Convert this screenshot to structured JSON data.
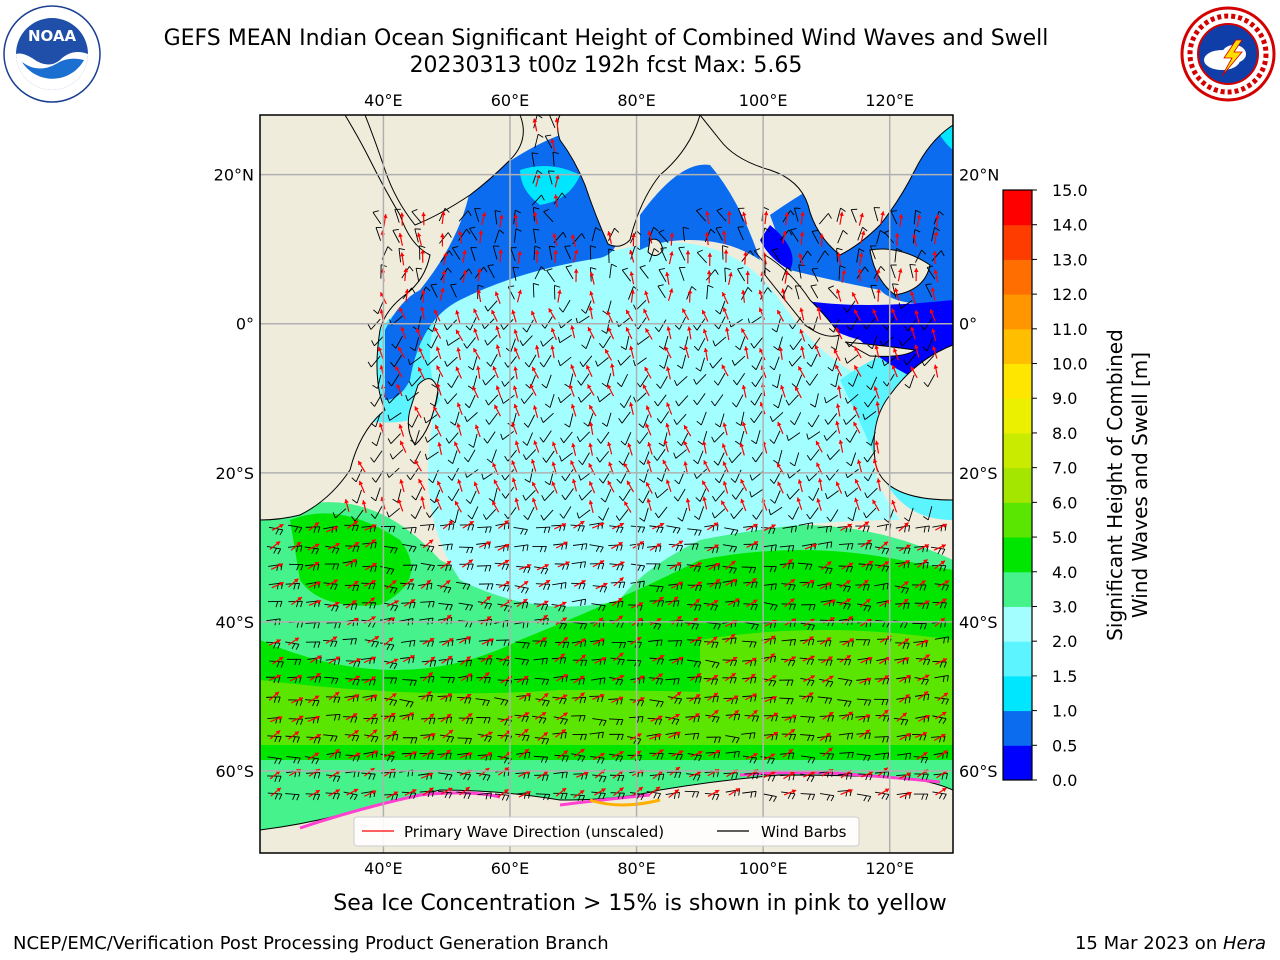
{
  "title": {
    "line1": "GEFS MEAN Indian Ocean Significant Height of Combined Wind Waves and Swell",
    "line2": "20230313 t00z 192h fcst   Max: 5.65"
  },
  "logos": {
    "left": {
      "text": "NOAA",
      "ring_text": "NATIONAL OCEANIC AND ATMOSPHERIC ADMINISTRATION · U.S. DEPARTMENT OF COMMERCE"
    },
    "right": {
      "ring_text": "NATIONAL WEATHER SERVICE"
    }
  },
  "map": {
    "lon_ticks": [
      "40°E",
      "60°E",
      "80°E",
      "100°E",
      "120°E"
    ],
    "lat_ticks": [
      "20°N",
      "0°",
      "20°S",
      "40°S",
      "60°S"
    ],
    "lon_values": [
      40,
      60,
      80,
      100,
      120
    ],
    "lat_values": [
      20,
      0,
      -20,
      -40,
      -60
    ],
    "lon_range": [
      20.5,
      130
    ],
    "lat_range": [
      28,
      -71
    ],
    "land_color": "#efecdc",
    "grid": true
  },
  "legend": {
    "wave_label": "Primary Wave Direction (unscaled)",
    "barb_label": "Wind Barbs",
    "wave_color": "#ff0000",
    "barb_color": "#000000"
  },
  "colorbar": {
    "label_line1": "Significant Height of Combined",
    "label_line2": "Wind Waves and Swell [m]",
    "ticks": [
      "0.0",
      "0.5",
      "1.0",
      "1.5",
      "2.0",
      "3.0",
      "4.0",
      "5.0",
      "6.0",
      "7.0",
      "8.0",
      "9.0",
      "10.0",
      "11.0",
      "12.0",
      "13.0",
      "14.0",
      "15.0"
    ],
    "colors": [
      "#0000ff",
      "#0b6cf0",
      "#00e6ff",
      "#5cf5ff",
      "#a3ffff",
      "#46f28c",
      "#00e600",
      "#5ae600",
      "#a5e600",
      "#c8eb00",
      "#ebf000",
      "#ffe600",
      "#ffbe00",
      "#ff9600",
      "#ff6e00",
      "#ff3c00",
      "#ff0000"
    ]
  },
  "footer": {
    "ice_note": "Sea Ice Concentration > 15% is shown in pink to yellow",
    "credit": "NCEP/EMC/Verification Post Processing Product Generation Branch",
    "date_prefix": "15 Mar 2023 on ",
    "date_machine": "Hera"
  }
}
